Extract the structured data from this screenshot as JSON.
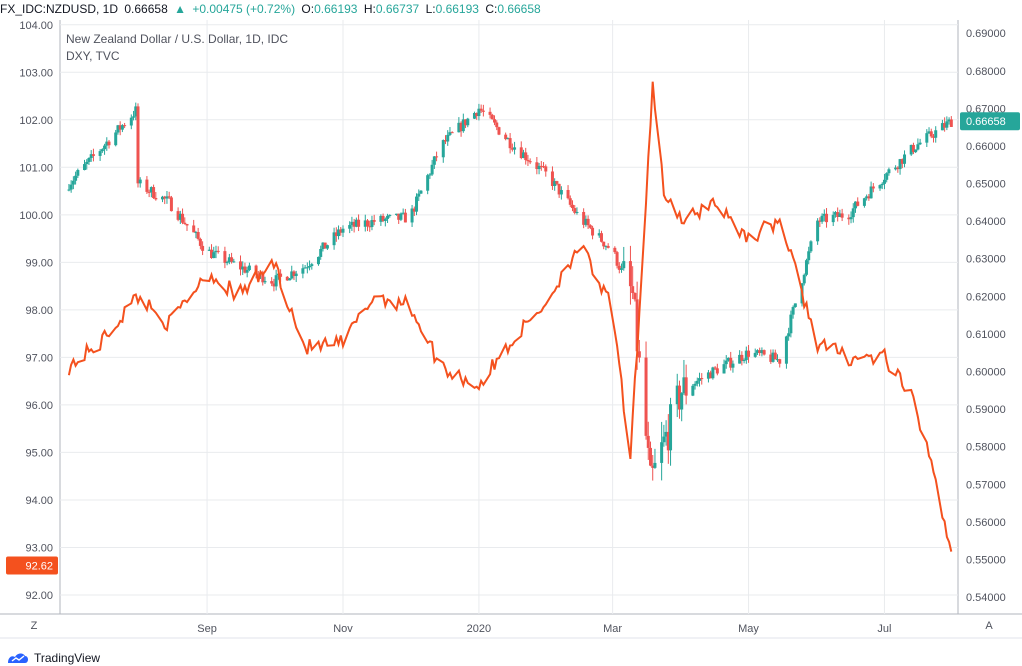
{
  "header": {
    "symbol": "FX_IDC:NZDUSD, 1D",
    "last": "0.66658",
    "change_icon": "up-triangle-icon",
    "change": "+0.00475 (+0.72%)",
    "o_label": "O:",
    "o": "0.66193",
    "h_label": "H:",
    "h": "0.66737",
    "l_label": "L:",
    "l": "0.66193",
    "c_label": "C:",
    "c": "0.66658"
  },
  "legend": {
    "main": "New Zealand Dollar / U.S. Dollar, 1D, IDC",
    "sub": "DXY, TVC"
  },
  "controls": {
    "left_button": "Z",
    "right_button": "A"
  },
  "brand": {
    "name": "TradingView",
    "icon": "tradingview-logo-icon"
  },
  "colors": {
    "candle_up": "#26a69a",
    "candle_down": "#ef5350",
    "dxy_line": "#f4511e",
    "grid": "#e9ebee"
  },
  "chart_data": {
    "type": "line",
    "x_tick_labels": [
      "Sep",
      "Nov",
      "2020",
      "Mar",
      "May",
      "Jul"
    ],
    "left_axis": {
      "ticks": [
        "104.00",
        "103.00",
        "102.00",
        "101.00",
        "100.00",
        "99.00",
        "98.00",
        "97.00",
        "96.00",
        "95.00",
        "94.00",
        "93.00",
        "92.00"
      ],
      "range": [
        91.6,
        104.1
      ],
      "current_label": "92.62",
      "current_value": 92.62
    },
    "right_axis": {
      "ticks": [
        "0.69000",
        "0.68000",
        "0.67000",
        "0.66000",
        "0.65000",
        "0.64000",
        "0.63000",
        "0.62000",
        "0.61000",
        "0.60000",
        "0.59000",
        "0.58000",
        "0.57000",
        "0.56000",
        "0.55000",
        "0.54000"
      ],
      "range": [
        0.5355,
        0.6935
      ],
      "current_label": "0.66658",
      "current_value": 0.66658
    },
    "grid": true,
    "series": [
      {
        "name": "New Zealand Dollar / U.S. Dollar, 1D, IDC",
        "kind": "candlestick",
        "axis": "right",
        "dates": [
          "2019-08-01",
          "2019-08-15",
          "2019-09-01",
          "2019-09-15",
          "2019-10-01",
          "2019-10-15",
          "2019-11-01",
          "2019-11-15",
          "2019-12-01",
          "2019-12-15",
          "2020-01-01",
          "2020-01-15",
          "2020-02-01",
          "2020-02-15",
          "2020-03-01",
          "2020-03-10",
          "2020-03-18",
          "2020-04-01",
          "2020-04-15",
          "2020-05-01",
          "2020-05-15",
          "2020-06-01",
          "2020-06-15",
          "2020-07-01",
          "2020-07-15",
          "2020-07-31"
        ],
        "values": [
          0.65,
          0.645,
          0.632,
          0.628,
          0.624,
          0.628,
          0.638,
          0.64,
          0.641,
          0.66,
          0.67,
          0.661,
          0.652,
          0.641,
          0.632,
          0.62,
          0.57,
          0.595,
          0.6,
          0.605,
          0.603,
          0.64,
          0.642,
          0.652,
          0.66,
          0.6666
        ]
      },
      {
        "name": "DXY, TVC",
        "kind": "line",
        "axis": "left",
        "dates": [
          "2019-07-01",
          "2019-07-15",
          "2019-08-01",
          "2019-08-15",
          "2019-09-01",
          "2019-09-15",
          "2019-10-01",
          "2019-10-15",
          "2019-11-01",
          "2019-11-15",
          "2019-12-01",
          "2019-12-15",
          "2020-01-01",
          "2020-01-15",
          "2020-02-01",
          "2020-02-15",
          "2020-03-01",
          "2020-03-09",
          "2020-03-19",
          "2020-03-24",
          "2020-04-01",
          "2020-04-15",
          "2020-05-01",
          "2020-05-15",
          "2020-06-01",
          "2020-06-15",
          "2020-07-01",
          "2020-07-15",
          "2020-07-31"
        ],
        "values": [
          96.8,
          97.3,
          98.3,
          97.7,
          98.8,
          98.3,
          99.0,
          97.2,
          97.3,
          98.3,
          98.1,
          96.8,
          96.4,
          97.3,
          98.2,
          99.4,
          98.0,
          94.8,
          102.8,
          100.5,
          99.8,
          100.3,
          99.5,
          99.9,
          97.3,
          97.0,
          97.0,
          96.0,
          93.0
        ]
      }
    ]
  }
}
